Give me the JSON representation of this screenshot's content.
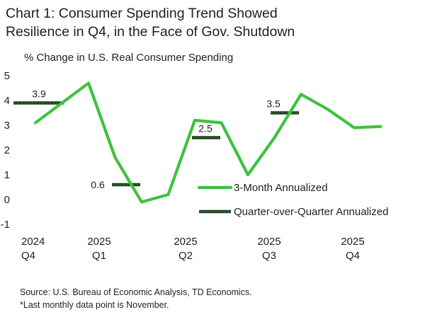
{
  "header": {
    "title_line1": "Chart 1: Consumer Spending Trend Showed",
    "title_line2": "Resilience in Q4, in the Face of Gov. Shutdown"
  },
  "footer": {
    "source": "Source: U.S. Bureau of Economic Analysis, TD Economics.",
    "note": "*Last monthly data point is November."
  },
  "colors": {
    "monthly_line": "#3ec23e",
    "quarterly_mark": "#1f3d1f",
    "quarterly_mark_fill": "#2f6b2f"
  },
  "chart_data": {
    "type": "line",
    "title": "Chart 1: Consumer Spending Trend Showed Resilience in Q4, in the Face of Gov. Shutdown",
    "ylabel": "% Change in U.S. Real Consumer Spending",
    "xlabel": "",
    "ylim": [
      -1,
      5
    ],
    "yticks": [
      "5",
      "4",
      "3",
      "2",
      "1",
      "0",
      "-1"
    ],
    "grid": false,
    "legend_position": "center-right",
    "x_ticks": [
      {
        "year": "2024",
        "quarter": "Q4"
      },
      {
        "year": "2025",
        "quarter": "Q1"
      },
      {
        "year": "2025",
        "quarter": "Q2"
      },
      {
        "year": "2025",
        "quarter": "Q3"
      },
      {
        "year": "2025",
        "quarter": "Q4"
      }
    ],
    "series": [
      {
        "name": "3-Month Annualized",
        "style": "line",
        "values": [
          3.1,
          3.9,
          4.7,
          1.7,
          -0.1,
          0.2,
          3.2,
          3.1,
          1.0,
          2.5,
          4.25,
          3.65,
          2.9,
          2.95
        ]
      },
      {
        "name": "Quarter-over-Quarter Annualized",
        "style": "dash",
        "values": [
          3.9,
          0.6,
          2.5,
          3.5
        ],
        "labels": [
          "3.9",
          "0.6",
          "2.5",
          "3.5"
        ]
      }
    ]
  }
}
